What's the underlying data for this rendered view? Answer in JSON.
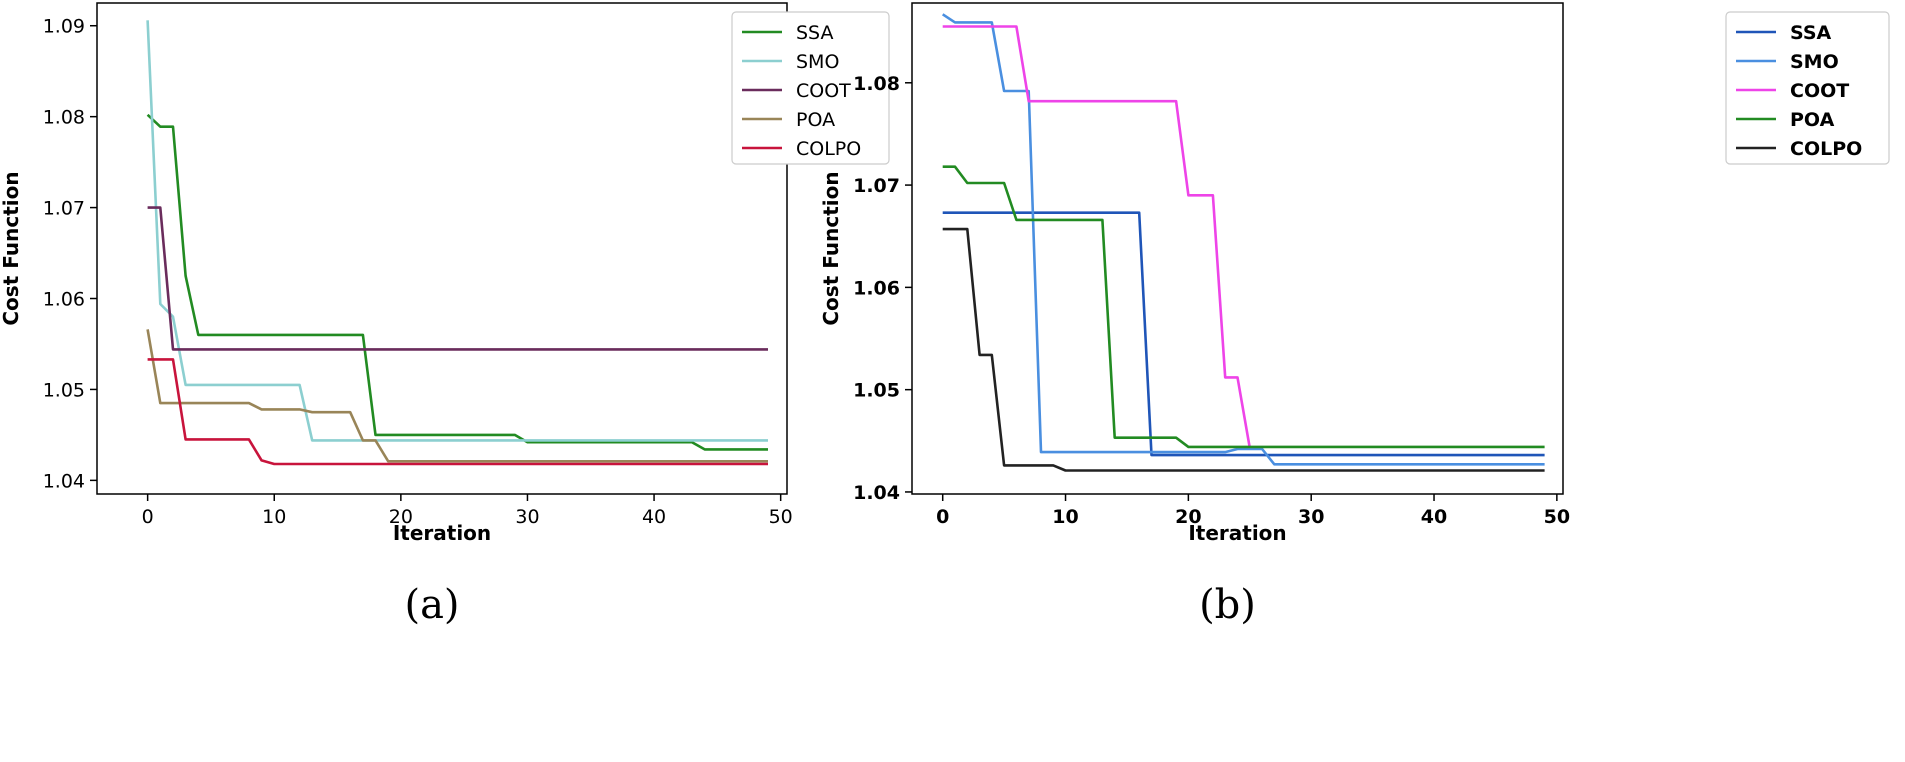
{
  "chart_data": [
    {
      "type": "line",
      "caption": "(a)",
      "xlabel": "Iteration",
      "ylabel": "Cost Function",
      "xlim": [
        -4,
        50.5
      ],
      "ylim": [
        1.0385,
        1.0925
      ],
      "xticks": [
        0,
        10,
        20,
        30,
        40,
        50
      ],
      "yticks": [
        1.04,
        1.05,
        1.06,
        1.07,
        1.08,
        1.09
      ],
      "ytick_labels": [
        "1.04",
        "1.05",
        "1.06",
        "1.07",
        "1.08",
        "1.09"
      ],
      "grid": false,
      "legend_position": "top-right",
      "series": [
        {
          "name": "SSA",
          "color": "#228B22",
          "points": [
            [
              0,
              1.0802
            ],
            [
              1,
              1.0789
            ],
            [
              2,
              1.0789
            ],
            [
              3,
              1.0625
            ],
            [
              4,
              1.056
            ],
            [
              17,
              1.056
            ],
            [
              18,
              1.045
            ],
            [
              29,
              1.045
            ],
            [
              30,
              1.0442
            ],
            [
              43,
              1.0442
            ],
            [
              44,
              1.0434
            ],
            [
              49,
              1.0434
            ]
          ]
        },
        {
          "name": "SMO",
          "color": "#8CCFD0",
          "points": [
            [
              0,
              1.0906
            ],
            [
              1,
              1.0594
            ],
            [
              2,
              1.058
            ],
            [
              3,
              1.0505
            ],
            [
              12,
              1.0505
            ],
            [
              13,
              1.0444
            ],
            [
              49,
              1.0444
            ]
          ]
        },
        {
          "name": "COOT",
          "color": "#6A2C5C",
          "points": [
            [
              0,
              1.07
            ],
            [
              1,
              1.07
            ],
            [
              2,
              1.0544
            ],
            [
              49,
              1.0544
            ]
          ]
        },
        {
          "name": "POA",
          "color": "#998558",
          "points": [
            [
              0,
              1.0566
            ],
            [
              1,
              1.0485
            ],
            [
              8,
              1.0485
            ],
            [
              9,
              1.0478
            ],
            [
              12,
              1.0478
            ],
            [
              13,
              1.0475
            ],
            [
              16,
              1.0475
            ],
            [
              17,
              1.0444
            ],
            [
              18,
              1.0444
            ],
            [
              19,
              1.0421
            ],
            [
              49,
              1.0421
            ]
          ]
        },
        {
          "name": "COLPO",
          "color": "#C8143C",
          "points": [
            [
              0,
              1.0533
            ],
            [
              2,
              1.0533
            ],
            [
              3,
              1.0445
            ],
            [
              8,
              1.0445
            ],
            [
              9,
              1.0422
            ],
            [
              10,
              1.0418
            ],
            [
              49,
              1.0418
            ]
          ]
        }
      ]
    },
    {
      "type": "line",
      "caption": "(b)",
      "xlabel": "Iteration",
      "ylabel": "Cost Function",
      "xlim": [
        -2.5,
        50.5
      ],
      "ylim": [
        1.0398,
        1.0878
      ],
      "xticks": [
        0,
        10,
        20,
        30,
        40,
        50
      ],
      "yticks": [
        1.04,
        1.05,
        1.06,
        1.07,
        1.08
      ],
      "ytick_labels": [
        "1.04",
        "1.05",
        "1.06",
        "1.07",
        "1.08"
      ],
      "grid": false,
      "legend_position": "top-right",
      "series": [
        {
          "name": "SSA",
          "color": "#1F55B8",
          "points": [
            [
              0,
              1.0673
            ],
            [
              16,
              1.0673
            ],
            [
              17,
              1.0436
            ],
            [
              49,
              1.0436
            ]
          ]
        },
        {
          "name": "SMO",
          "color": "#4A8FE0",
          "points": [
            [
              0,
              1.0867
            ],
            [
              1,
              1.0859
            ],
            [
              4,
              1.0859
            ],
            [
              5,
              1.0792
            ],
            [
              7,
              1.0792
            ],
            [
              8,
              1.0439
            ],
            [
              23,
              1.0439
            ],
            [
              24,
              1.0442
            ],
            [
              26,
              1.0442
            ],
            [
              27,
              1.0427
            ],
            [
              49,
              1.0427
            ]
          ]
        },
        {
          "name": "COOT",
          "color": "#EE44E8",
          "points": [
            [
              0,
              1.0855
            ],
            [
              6,
              1.0855
            ],
            [
              7,
              1.0782
            ],
            [
              19,
              1.0782
            ],
            [
              20,
              1.069
            ],
            [
              22,
              1.069
            ],
            [
              23,
              1.0512
            ],
            [
              24,
              1.0512
            ],
            [
              25,
              1.0443
            ]
          ]
        },
        {
          "name": "POA",
          "color": "#228B22",
          "points": [
            [
              0,
              1.0718
            ],
            [
              1,
              1.0718
            ],
            [
              2,
              1.0702
            ],
            [
              5,
              1.0702
            ],
            [
              6,
              1.0666
            ],
            [
              13,
              1.0666
            ],
            [
              14,
              1.0453
            ],
            [
              19,
              1.0453
            ],
            [
              20,
              1.0444
            ],
            [
              49,
              1.0444
            ]
          ]
        },
        {
          "name": "COLPO",
          "color": "#222222",
          "points": [
            [
              0,
              1.0657
            ],
            [
              2,
              1.0657
            ],
            [
              3,
              1.0534
            ],
            [
              4,
              1.0534
            ],
            [
              5,
              1.0426
            ],
            [
              9,
              1.0426
            ],
            [
              10,
              1.0421
            ],
            [
              49,
              1.0421
            ]
          ]
        }
      ]
    }
  ]
}
